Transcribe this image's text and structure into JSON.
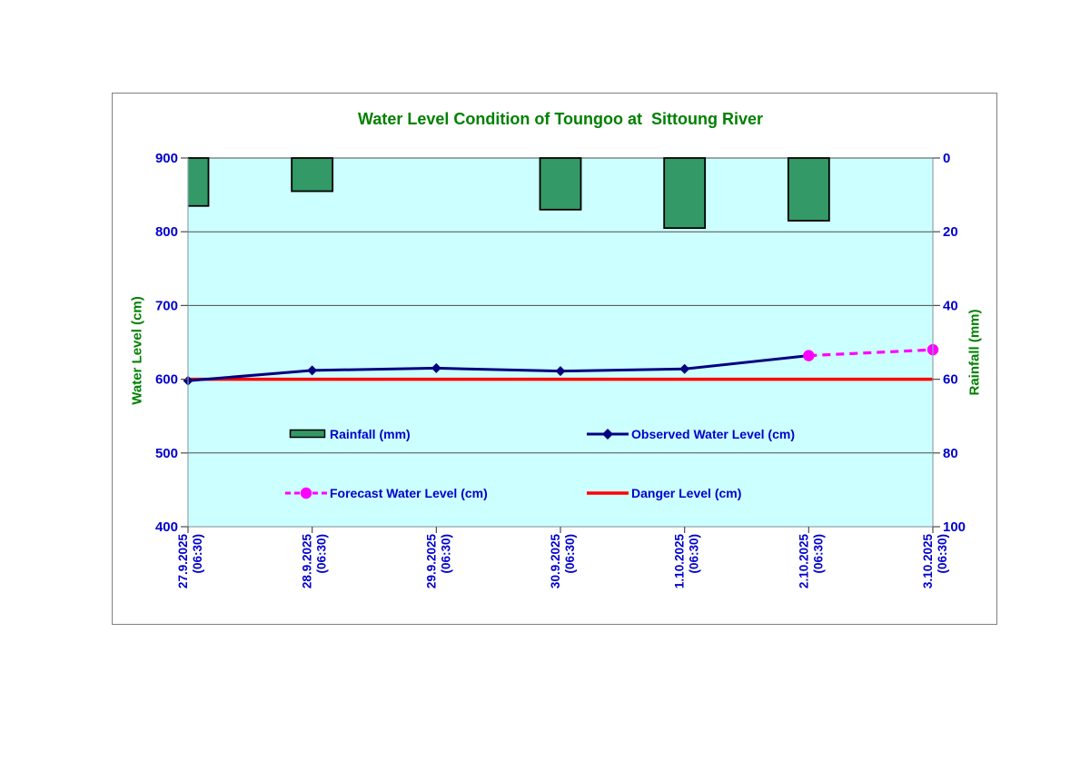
{
  "chart_data": {
    "type": "combo",
    "title": "Water Level Condition of Toungoo at  Sittoung River",
    "categories": [
      "27.9.2025",
      "28.9.2025",
      "29.9.2025",
      "30.9.2025",
      "1.10.2025",
      "2.10.2025",
      "3.10.2025"
    ],
    "category_sub_label": "(06:30)",
    "left_axis": {
      "label": "Water Level (cm)",
      "min": 400,
      "max": 900,
      "step": 100
    },
    "right_axis": {
      "label": "Rainfall (mm)",
      "min": 0,
      "max": 100,
      "step": 20,
      "inverted": true
    },
    "series": [
      {
        "name": "Rainfall (mm)",
        "type": "bar",
        "axis": "right",
        "color": "#339966",
        "values": [
          13,
          9,
          0,
          14,
          19,
          17,
          0
        ]
      },
      {
        "name": "Observed Water Level (cm)",
        "type": "line",
        "axis": "left",
        "color": "#000080",
        "marker": "diamond",
        "values": [
          598,
          612,
          615,
          611,
          614,
          632,
          null
        ]
      },
      {
        "name": "Forecast Water Level (cm)",
        "type": "dashed-line",
        "axis": "left",
        "color": "#FF00FF",
        "marker": "circle",
        "values": [
          null,
          null,
          null,
          null,
          null,
          632,
          640
        ]
      },
      {
        "name": "Danger Level (cm)",
        "type": "constant-line",
        "axis": "left",
        "color": "#FF0000",
        "value": 600
      }
    ],
    "layout_hints": {
      "plot_background": "#CCFFFF",
      "title_color": "#008000",
      "axis_title_color": "#008000",
      "tick_label_color": "#0000CC",
      "legend_text_color": "#0000CC",
      "gridline_color": "#4d4d4d",
      "axis_line_color": "#8fa3ad",
      "bar_border_color": "#000000",
      "frame_border_color": "#808080",
      "grid": "horizontal",
      "legend_position": "inside-plot"
    }
  }
}
